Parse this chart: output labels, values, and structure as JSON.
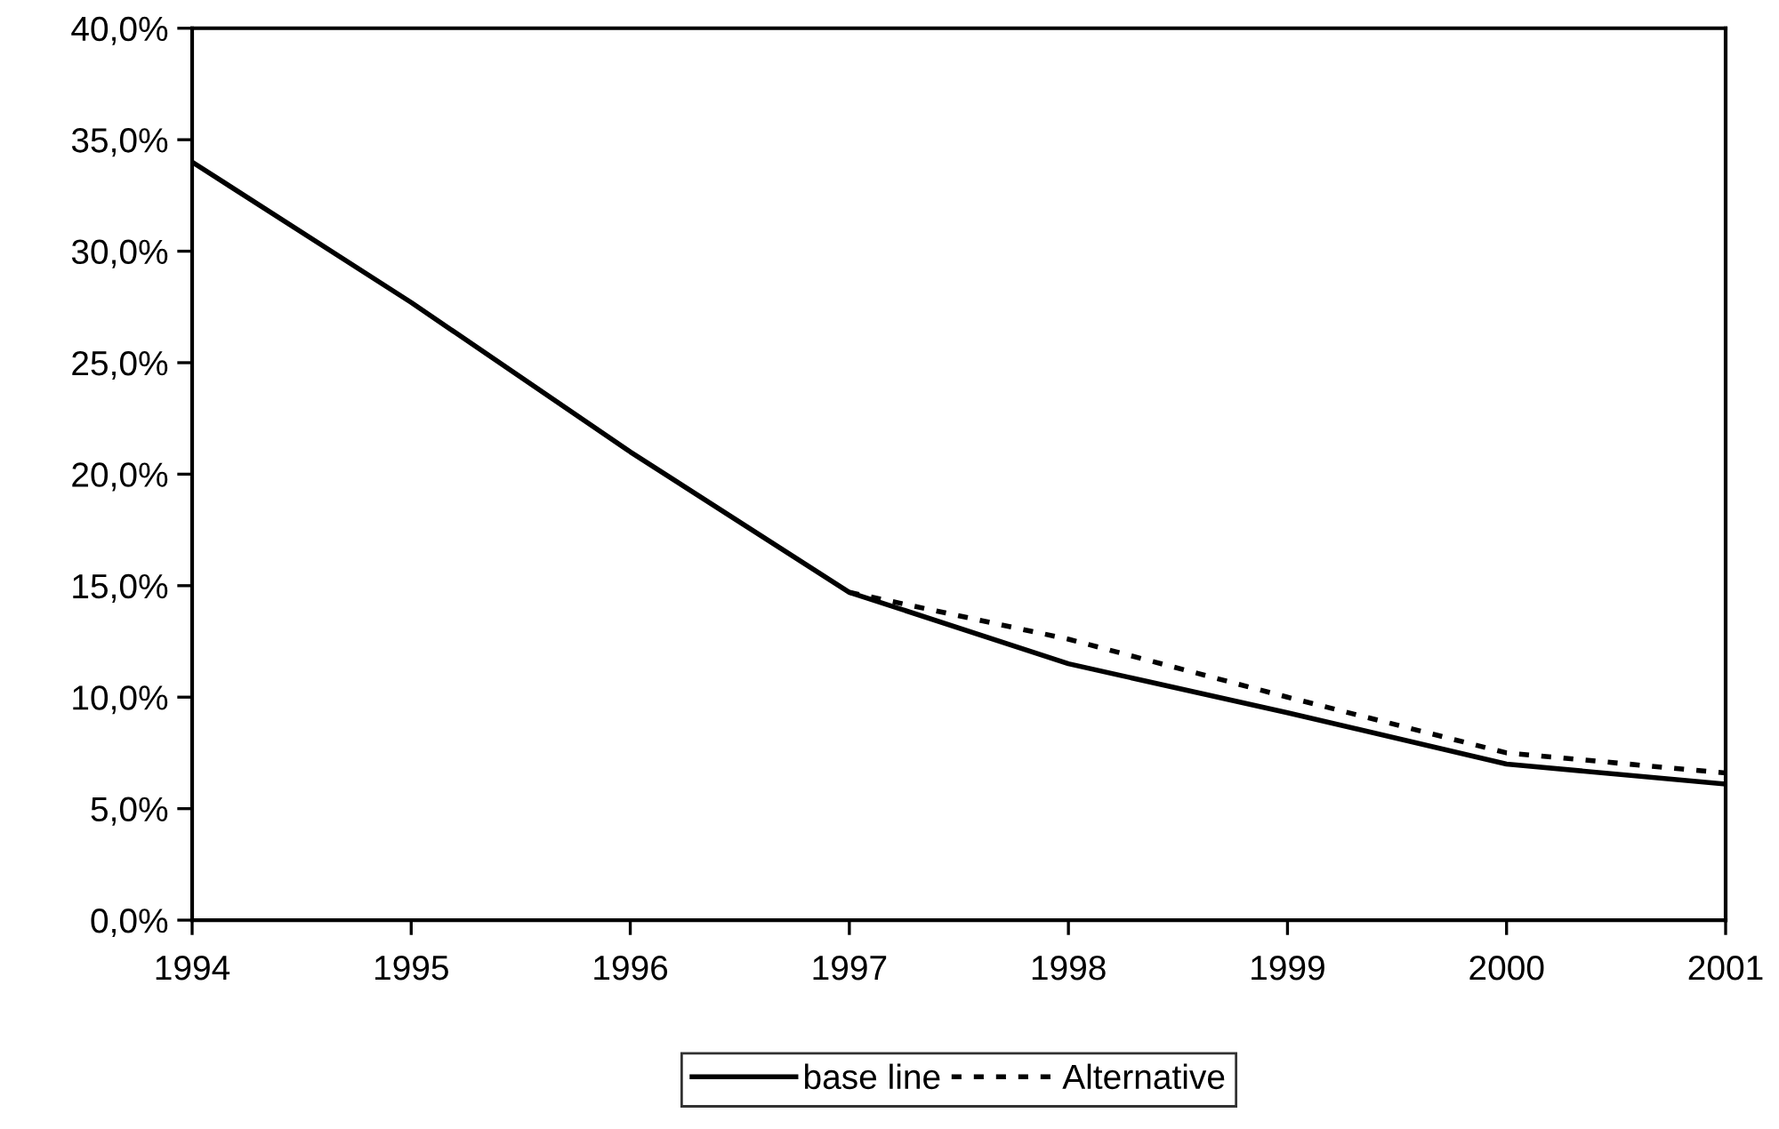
{
  "chart_data": {
    "type": "line",
    "x": [
      1994,
      1995,
      1996,
      1997,
      1998,
      1999,
      2000,
      2001
    ],
    "series": [
      {
        "name": "base line",
        "color": "#000000",
        "line_style": "solid",
        "values": [
          34.0,
          27.7,
          21.0,
          14.7,
          11.5,
          9.3,
          7.0,
          6.1
        ]
      },
      {
        "name": "Alternative",
        "color": "#000000",
        "line_style": "dotted",
        "values": [
          null,
          null,
          null,
          14.7,
          12.6,
          10.0,
          7.5,
          6.6
        ]
      }
    ],
    "xlim": [
      1994,
      2001
    ],
    "xticks": [
      1994,
      1995,
      1996,
      1997,
      1998,
      1999,
      2000,
      2001
    ],
    "ylim": [
      0,
      40
    ],
    "yticks": [
      {
        "value": 0,
        "label": "0,0%"
      },
      {
        "value": 5,
        "label": "5,0%"
      },
      {
        "value": 10,
        "label": "10,0%"
      },
      {
        "value": 15,
        "label": "15,0%"
      },
      {
        "value": 20,
        "label": "20,0%"
      },
      {
        "value": 25,
        "label": "25,0%"
      },
      {
        "value": 30,
        "label": "30,0%"
      },
      {
        "value": 35,
        "label": "35,0%"
      },
      {
        "value": 40,
        "label": "40,0%"
      }
    ],
    "grid": false,
    "legend": "bottom",
    "marker": "none"
  }
}
